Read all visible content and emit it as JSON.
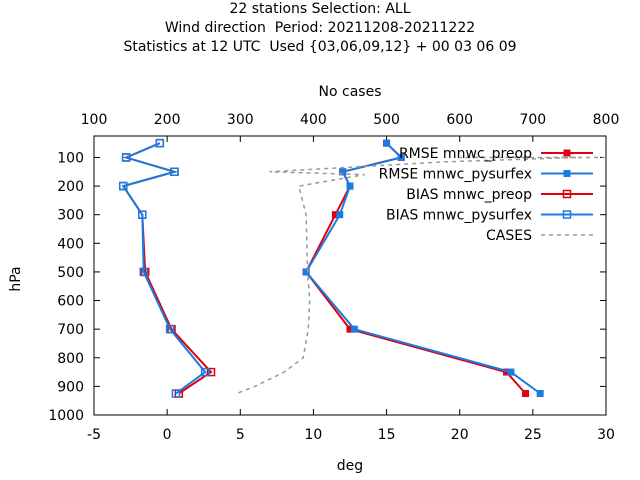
{
  "title": {
    "line1": "22 stations Selection: ALL",
    "line2": "Wind direction  Period: 20211208-20211222",
    "line3": "Statistics at 12 UTC  Used {03,06,09,12} + 00 03 06 09"
  },
  "chart_data": {
    "type": "line",
    "xlabel": "deg",
    "ylabel": "hPa",
    "x2label": "No cases",
    "xlim": [
      -5,
      30
    ],
    "ylim": [
      1000,
      25
    ],
    "x2lim": [
      100,
      800
    ],
    "xticks": [
      -5,
      0,
      5,
      10,
      15,
      20,
      25,
      30
    ],
    "yticks": [
      100,
      200,
      300,
      400,
      500,
      600,
      700,
      800,
      900,
      1000
    ],
    "x2ticks": [
      100,
      200,
      300,
      400,
      500,
      600,
      700,
      800
    ],
    "grid": false,
    "legend_position": "top-right",
    "series": [
      {
        "name": "RMSE mnwc_preop",
        "color": "#e0000f",
        "marker": "filled-square",
        "dashed": false,
        "axis": "x",
        "points": [
          [
            15,
            50
          ],
          [
            16,
            100
          ],
          [
            12,
            150
          ],
          [
            12.5,
            200
          ],
          [
            11.5,
            300
          ],
          [
            9.5,
            500
          ],
          [
            12.5,
            700
          ],
          [
            23.2,
            850
          ],
          [
            24.5,
            925
          ]
        ]
      },
      {
        "name": "RMSE mnwc_pysurfex",
        "color": "#1a7be0",
        "marker": "filled-square",
        "dashed": false,
        "axis": "x",
        "points": [
          [
            15,
            50
          ],
          [
            16,
            100
          ],
          [
            12,
            150
          ],
          [
            12.5,
            200
          ],
          [
            11.8,
            300
          ],
          [
            9.5,
            500
          ],
          [
            12.8,
            700
          ],
          [
            23.5,
            850
          ],
          [
            25.5,
            925
          ]
        ]
      },
      {
        "name": "BIAS mnwc_preop",
        "color": "#e0000f",
        "marker": "open-square",
        "dashed": false,
        "axis": "x",
        "points": [
          [
            -0.5,
            50
          ],
          [
            -2.8,
            100
          ],
          [
            0.5,
            150
          ],
          [
            -3,
            200
          ],
          [
            -1.7,
            300
          ],
          [
            -1.5,
            500
          ],
          [
            0.3,
            700
          ],
          [
            3,
            850
          ],
          [
            0.8,
            925
          ]
        ]
      },
      {
        "name": "BIAS mnwc_pysurfex",
        "color": "#1a7be0",
        "marker": "open-square",
        "dashed": false,
        "axis": "x",
        "points": [
          [
            -0.5,
            50
          ],
          [
            -2.8,
            100
          ],
          [
            0.5,
            150
          ],
          [
            -3,
            200
          ],
          [
            -1.7,
            300
          ],
          [
            -1.6,
            500
          ],
          [
            0.2,
            700
          ],
          [
            2.6,
            850
          ],
          [
            0.6,
            925
          ]
        ]
      },
      {
        "name": "CASES",
        "color": "#999999",
        "marker": "none",
        "dashed": true,
        "axis": "x2",
        "points": [
          [
            800,
            100
          ],
          [
            600,
            100
          ],
          [
            760,
            100
          ],
          [
            580,
            115
          ],
          [
            340,
            150
          ],
          [
            470,
            160
          ],
          [
            380,
            200
          ],
          [
            390,
            300
          ],
          [
            392,
            500
          ],
          [
            395,
            600
          ],
          [
            393,
            700
          ],
          [
            386,
            800
          ],
          [
            360,
            850
          ],
          [
            320,
            900
          ],
          [
            295,
            925
          ]
        ]
      }
    ]
  }
}
